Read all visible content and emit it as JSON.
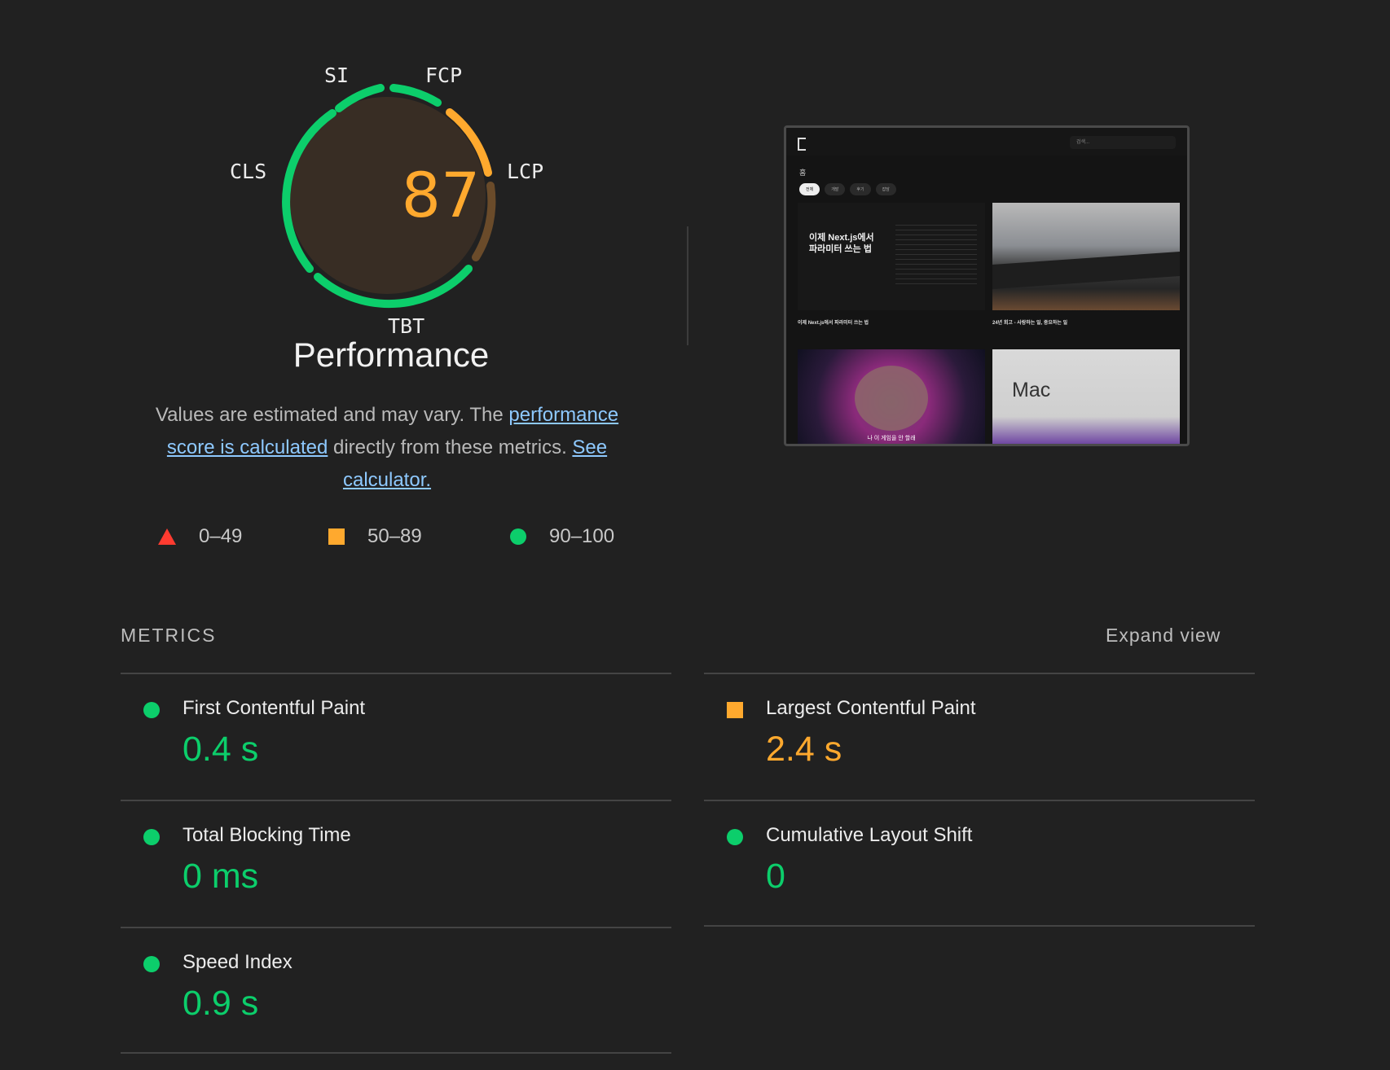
{
  "gauge": {
    "score": "87",
    "labels": {
      "si": "SI",
      "fcp": "FCP",
      "lcp": "LCP",
      "tbt": "TBT",
      "cls": "CLS"
    },
    "title": "Performance"
  },
  "description": {
    "text1": "Values are estimated and may vary. The ",
    "link1": "performance score is calculated",
    "text2": " directly from these metrics. ",
    "link2": "See calculator."
  },
  "legend": [
    {
      "range": "0–49",
      "shape": "triangle",
      "color": "#ff3b30"
    },
    {
      "range": "50–89",
      "shape": "square",
      "color": "#ffa92e"
    },
    {
      "range": "90–100",
      "shape": "circle",
      "color": "#0cce6b"
    }
  ],
  "preview": {
    "search": "검색...",
    "home": "홈",
    "tabs": [
      "전체",
      "개발",
      "후기",
      "잡담"
    ],
    "card1_title": "이제 Next.js에서 파라미터 쓰는 법",
    "card1_caption_title": "이제 Next.js에서 파라미터 쓰는 법",
    "card2_caption_title": "24년 회고 - 사랑하는 일, 중요하는 일",
    "card3_sub": "나 이 게임을 안 할래",
    "card4_text": "Mac"
  },
  "metrics_section": {
    "title": "METRICS",
    "expand": "Expand view",
    "items": [
      {
        "name": "First Contentful Paint",
        "value": "0.4 s",
        "status": "green"
      },
      {
        "name": "Largest Contentful Paint",
        "value": "2.4 s",
        "status": "orange"
      },
      {
        "name": "Total Blocking Time",
        "value": "0 ms",
        "status": "green"
      },
      {
        "name": "Cumulative Layout Shift",
        "value": "0",
        "status": "green"
      },
      {
        "name": "Speed Index",
        "value": "0.9 s",
        "status": "green"
      }
    ]
  },
  "colors": {
    "green": "#0cce6b",
    "orange": "#ffa92e",
    "red": "#ff3b30",
    "background": "#212121"
  }
}
